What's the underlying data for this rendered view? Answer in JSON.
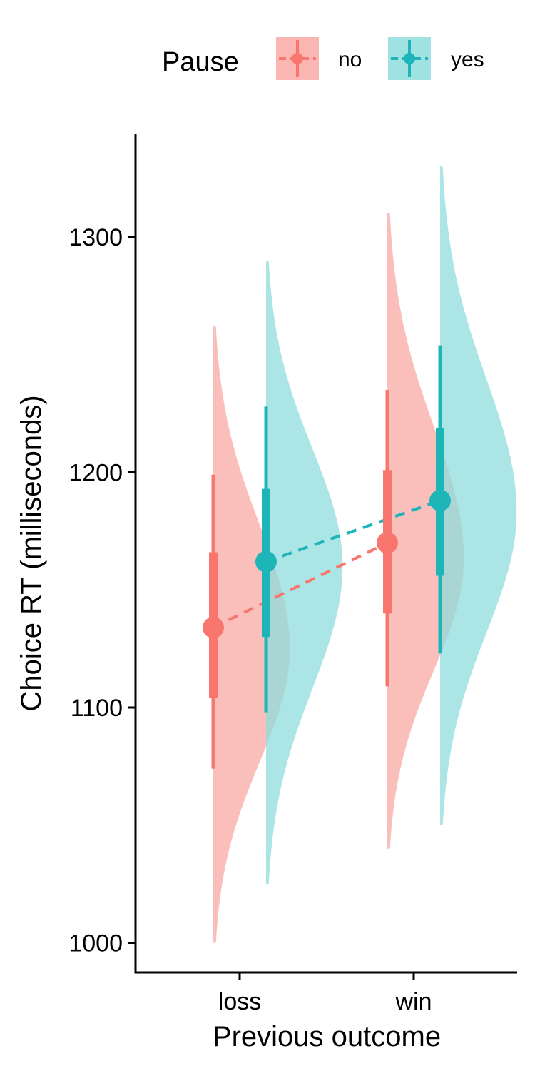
{
  "chart_data": {
    "type": "raincloud",
    "xlabel": "Previous outcome",
    "ylabel": "Choice RT (milliseconds)",
    "ylim": [
      990,
      1340
    ],
    "yticks": [
      1000,
      1100,
      1200,
      1300
    ],
    "categories": [
      "loss",
      "win"
    ],
    "legend": {
      "title": "Pause",
      "placement": "top",
      "items": [
        {
          "label": "no",
          "color": "#F8766D",
          "fill": "#F8A9A4"
        },
        {
          "label": "yes",
          "color": "#1DB5B8",
          "fill": "#8FDCDD"
        }
      ]
    },
    "series": [
      {
        "name": "no",
        "color": "#F8766D",
        "fill": "#F8A9A4",
        "stats": [
          {
            "category": "loss",
            "median": 1134,
            "q_inner": [
              1104,
              1166
            ],
            "q_outer": [
              1074,
              1199
            ],
            "density_range": [
              1000,
              1262
            ],
            "density_peak": 1125
          },
          {
            "category": "win",
            "median": 1170,
            "q_inner": [
              1140,
              1201
            ],
            "q_outer": [
              1109,
              1235
            ],
            "density_range": [
              1040,
              1310
            ],
            "density_peak": 1163
          }
        ]
      },
      {
        "name": "yes",
        "color": "#1DB5B8",
        "fill": "#8FDCDD",
        "stats": [
          {
            "category": "loss",
            "median": 1162,
            "q_inner": [
              1130,
              1193
            ],
            "q_outer": [
              1098,
              1228
            ],
            "density_range": [
              1025,
              1290
            ],
            "density_peak": 1160
          },
          {
            "category": "win",
            "median": 1188,
            "q_inner": [
              1156,
              1219
            ],
            "q_outer": [
              1123,
              1254
            ],
            "density_range": [
              1050,
              1330
            ],
            "density_peak": 1183
          }
        ]
      }
    ]
  }
}
